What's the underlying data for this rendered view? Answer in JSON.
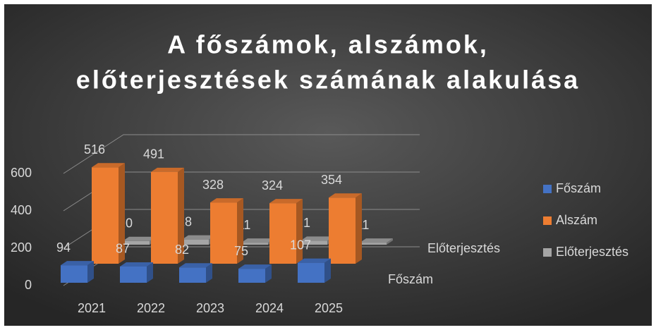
{
  "chart_data": {
    "type": "bar3d",
    "title": [
      "A főszámok, alszámok,",
      "előterjesztések számának alakulása"
    ],
    "categories": [
      "2021",
      "2022",
      "2023",
      "2024",
      "2025"
    ],
    "series": [
      {
        "name": "Főszám",
        "color": "#4472c4",
        "values": [
          94,
          87,
          82,
          75,
          107
        ]
      },
      {
        "name": "Alszám",
        "color": "#ed7d31",
        "values": [
          516,
          491,
          328,
          324,
          354
        ]
      },
      {
        "name": "Előterjesztés",
        "color": "#a5a5a5",
        "values": [
          20,
          28,
          11,
          21,
          11
        ]
      }
    ],
    "depth_labels": [
      "Főszám",
      null,
      "Előterjesztés"
    ],
    "ylim": [
      0,
      700
    ],
    "yticks": [
      0,
      200,
      400,
      600
    ],
    "grid": true,
    "legend": "right"
  }
}
